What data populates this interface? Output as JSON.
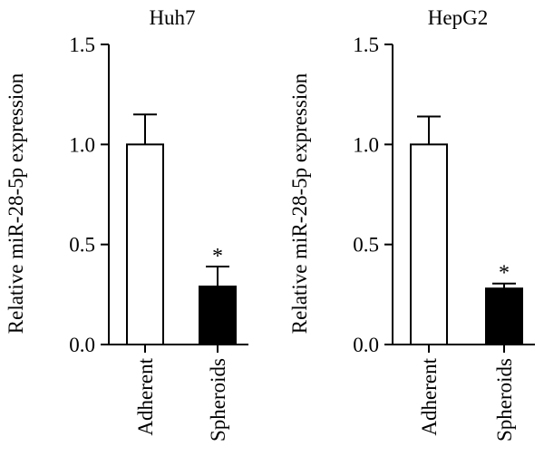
{
  "chart_data": [
    {
      "type": "bar",
      "title": "Huh7",
      "ylabel": "Relative miR-28-5p expression",
      "xlabel": "",
      "categories": [
        "Adherent",
        "Spheroids"
      ],
      "values": [
        1.0,
        0.29
      ],
      "error": [
        0.15,
        0.1
      ],
      "bar_colors": [
        "#ffffff",
        "#000000"
      ],
      "significance": [
        "",
        "*"
      ],
      "ylim": [
        0,
        1.5
      ],
      "yticks": [
        "0.0",
        "0.5",
        "1.0",
        "1.5"
      ],
      "grid": false
    },
    {
      "type": "bar",
      "title": "HepG2",
      "ylabel": "Relative miR-28-5p expression",
      "xlabel": "",
      "categories": [
        "Adherent",
        "Spheroids"
      ],
      "values": [
        1.0,
        0.28
      ],
      "error": [
        0.14,
        0.025
      ],
      "bar_colors": [
        "#ffffff",
        "#000000"
      ],
      "significance": [
        "",
        "*"
      ],
      "ylim": [
        0,
        1.5
      ],
      "yticks": [
        "0.0",
        "0.5",
        "1.0",
        "1.5"
      ],
      "grid": false
    }
  ]
}
